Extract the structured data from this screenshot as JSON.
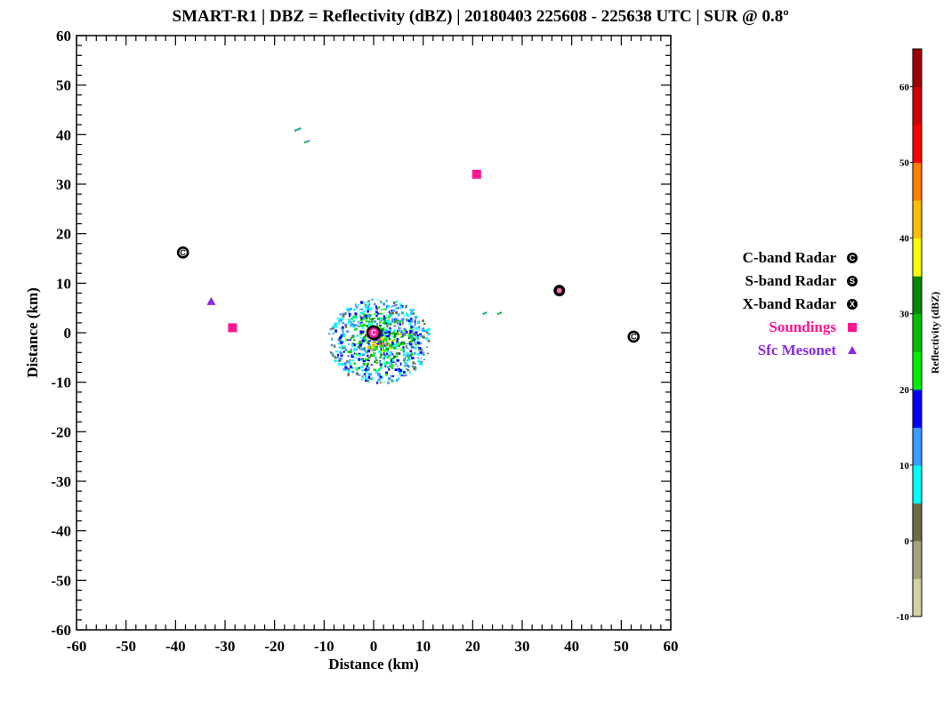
{
  "chart_data": {
    "type": "scatter",
    "title": "SMART-R1 | DBZ = Reflectivity (dBZ) | 20180403 225608 - 225638 UTC | SUR @ 0.8º",
    "xlabel": "Distance (km)",
    "ylabel": "Distance (km)",
    "xlim": [
      -60,
      60
    ],
    "ylim": [
      -60,
      60
    ],
    "x_ticks": [
      -60,
      -50,
      -40,
      -30,
      -20,
      -10,
      0,
      10,
      20,
      30,
      40,
      50,
      60
    ],
    "y_ticks": [
      -60,
      -50,
      -40,
      -30,
      -20,
      -10,
      0,
      10,
      20,
      30,
      40,
      50,
      60
    ],
    "x_tick_labels": [
      "-60",
      "-50",
      "-40",
      "-30",
      "-20",
      "-10",
      "0",
      "10",
      "20",
      "30",
      "40",
      "50",
      "60"
    ],
    "y_tick_labels": [
      "-60",
      "-50",
      "-40",
      "-30",
      "-20",
      "-10",
      "0",
      "10",
      "20",
      "30",
      "40",
      "50",
      "60"
    ],
    "grid": false,
    "legend_position": "right",
    "legend": [
      {
        "label": "C-band Radar",
        "symbol": "circle-letter",
        "letter": "C",
        "color": "#000000"
      },
      {
        "label": "S-band Radar",
        "symbol": "circle-letter",
        "letter": "S",
        "color": "#000000"
      },
      {
        "label": "X-band Radar",
        "symbol": "circle-letter",
        "letter": "X",
        "color": "#000000"
      },
      {
        "label": "Soundings",
        "symbol": "square",
        "color": "#ff1493"
      },
      {
        "label": "Sfc Mesonet",
        "symbol": "triangle",
        "color": "#8a2be2"
      }
    ],
    "series": [
      {
        "name": "C-band Radar",
        "letter": "C",
        "x": [
          -38.5,
          0,
          52.5
        ],
        "y": [
          16.2,
          0,
          -0.8
        ]
      },
      {
        "name": "X-band Radar",
        "letter": "X",
        "x": [
          37.5
        ],
        "y": [
          8.5
        ]
      },
      {
        "name": "Soundings",
        "x": [
          20.8,
          -28.5
        ],
        "y": [
          32.0,
          1.0
        ]
      },
      {
        "name": "Sfc Mesonet",
        "x": [
          -32.8
        ],
        "y": [
          6.3
        ]
      }
    ],
    "echo_region": {
      "center_x": 1,
      "center_y": -1.5,
      "radius_km": 9
    },
    "colorbar": {
      "label": "Reflectivity (dBZ)",
      "range": [
        -10,
        65
      ],
      "tick_values": [
        -10,
        0,
        10,
        20,
        30,
        40,
        50,
        60
      ],
      "tick_labels": [
        "-10",
        "0",
        "10",
        "20",
        "30",
        "40",
        "50",
        "60"
      ],
      "colors": [
        "#d2d2a4",
        "#a6a67a",
        "#6e6e46",
        "#00ffff",
        "#3d9bff",
        "#0000ff",
        "#00ee00",
        "#00c000",
        "#008a00",
        "#ffff00",
        "#ffbf00",
        "#ff7f00",
        "#ff0000",
        "#d40000",
        "#a00000"
      ]
    }
  }
}
